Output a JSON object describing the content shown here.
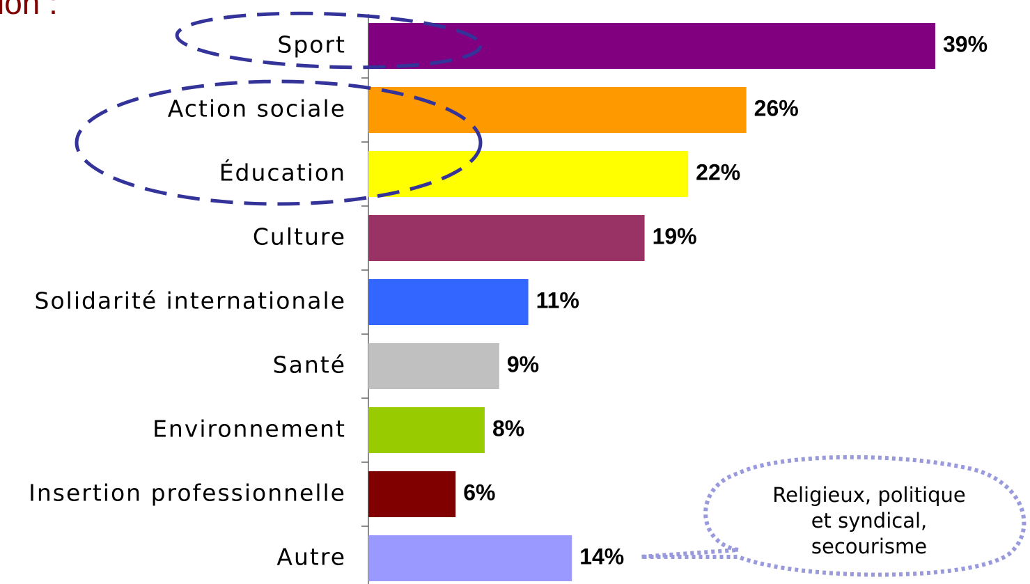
{
  "chart_data": {
    "type": "bar",
    "orientation": "horizontal",
    "title": "ion :",
    "categories": [
      "Sport",
      "Action sociale",
      "Éducation",
      "Culture",
      "Solidarité internationale",
      "Santé",
      "Environnement",
      "Insertion professionnelle",
      "Autre"
    ],
    "values": [
      39,
      26,
      22,
      19,
      11,
      9,
      8,
      6,
      14
    ],
    "value_labels": [
      "39%",
      "26%",
      "22%",
      "19%",
      "11%",
      "9%",
      "8%",
      "6%",
      "14%"
    ],
    "colors": [
      "#800080",
      "#ff9900",
      "#ffff00",
      "#993366",
      "#3366ff",
      "#c0c0c0",
      "#99cc00",
      "#800000",
      "#9999ff"
    ],
    "annotation": [
      "Religieux, politique",
      "et syndical,",
      "secourisme"
    ]
  }
}
